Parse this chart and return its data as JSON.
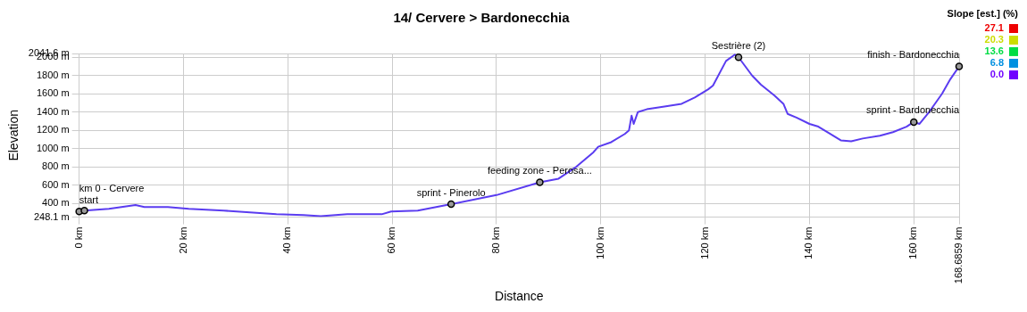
{
  "chart_data": {
    "type": "line",
    "title": "14/ Cervere > Bardonecchia",
    "xlabel": "Distance",
    "ylabel": "Elevation",
    "clabel": "Slope [est.] (%)",
    "cticks": [
      {
        "value": 27.1,
        "label": "27.1"
      },
      {
        "value": 20.3,
        "label": "20.3"
      },
      {
        "value": 13.6,
        "label": "13.6"
      },
      {
        "value": 6.8,
        "label": "6.8"
      },
      {
        "value": 0,
        "label": "0.0"
      }
    ],
    "x": [
      0,
      1,
      5.7,
      10.8,
      12.5,
      17,
      21,
      27.7,
      37.8,
      43,
      46.3,
      51.4,
      58,
      59.8,
      64.9,
      71.3,
      80,
      88.3,
      91.9,
      95.3,
      98.6,
      99.5,
      102,
      104.6,
      105.4,
      105.9,
      106.3,
      107.1,
      108.8,
      112.2,
      115.5,
      118,
      120.6,
      121.5,
      124,
      125.7,
      126.4,
      129,
      130.7,
      133.3,
      135,
      135.8,
      137.5,
      140,
      141.7,
      143.4,
      146,
      148,
      150.2,
      153.5,
      156,
      158.6,
      160,
      161.1,
      162.8,
      165.4,
      167,
      168.68
    ],
    "series": [
      {
        "values": [
          310,
          320,
          340,
          380,
          360,
          360,
          340,
          320,
          280,
          270,
          260,
          280,
          280,
          310,
          320,
          390,
          490,
          630,
          670,
          800,
          960,
          1020,
          1070,
          1160,
          1200,
          1360,
          1270,
          1400,
          1430,
          1460,
          1490,
          1560,
          1650,
          1690,
          1960,
          2030,
          2000,
          1800,
          1700,
          1580,
          1490,
          1380,
          1340,
          1270,
          1240,
          1180,
          1090,
          1080,
          1110,
          1140,
          1180,
          1240,
          1290,
          1270,
          1390,
          1600,
          1760,
          1900
        ],
        "color": "#5a3cf0"
      }
    ],
    "xlim": [
      0,
      168.6859
    ],
    "xticks": [
      {
        "value": 0,
        "label": "0 km"
      },
      {
        "value": 20,
        "label": "20 km"
      },
      {
        "value": 40,
        "label": "40 km"
      },
      {
        "value": 60,
        "label": "60 km"
      },
      {
        "value": 80,
        "label": "80 km"
      },
      {
        "value": 100,
        "label": "100 km"
      },
      {
        "value": 120,
        "label": "120 km"
      },
      {
        "value": 140,
        "label": "140 km"
      },
      {
        "value": 160,
        "label": "160 km"
      },
      {
        "value": 168.6859,
        "label": "168.6859 km"
      }
    ],
    "ylim": [
      248.1,
      2041.6
    ],
    "yticks": [
      {
        "value": 248.1,
        "label": "248.1 m"
      },
      {
        "value": 400,
        "label": "400 m"
      },
      {
        "value": 600,
        "label": "600 m"
      },
      {
        "value": 800,
        "label": "800 m"
      },
      {
        "value": 1000,
        "label": "1000 m"
      },
      {
        "value": 1200,
        "label": "1200 m"
      },
      {
        "value": 1400,
        "label": "1400 m"
      },
      {
        "value": 1600,
        "label": "1600 m"
      },
      {
        "value": 1800,
        "label": "1800 m"
      },
      {
        "value": 2000,
        "label": "2000 m"
      },
      {
        "value": 2041.6,
        "label": "2041.6 m"
      }
    ],
    "grid": true,
    "legend": false,
    "marker": "none",
    "line_style": "solid",
    "annotations": [
      {
        "text": "start",
        "x": 0,
        "y": 310
      },
      {
        "text": "km 0 - Cervere",
        "x": 1,
        "y": 320
      },
      {
        "text": "sprint - Pinerolo",
        "x": 71.3,
        "y": 390
      },
      {
        "text": "feeding zone - Perosa...",
        "x": 88.3,
        "y": 630
      },
      {
        "text": "Sestrière (2)",
        "x": 126.4,
        "y": 2000
      },
      {
        "text": "sprint - Bardonecchia",
        "x": 160,
        "y": 1290
      },
      {
        "text": "finish - Bardonecchia",
        "x": 168.68,
        "y": 1900
      }
    ]
  }
}
